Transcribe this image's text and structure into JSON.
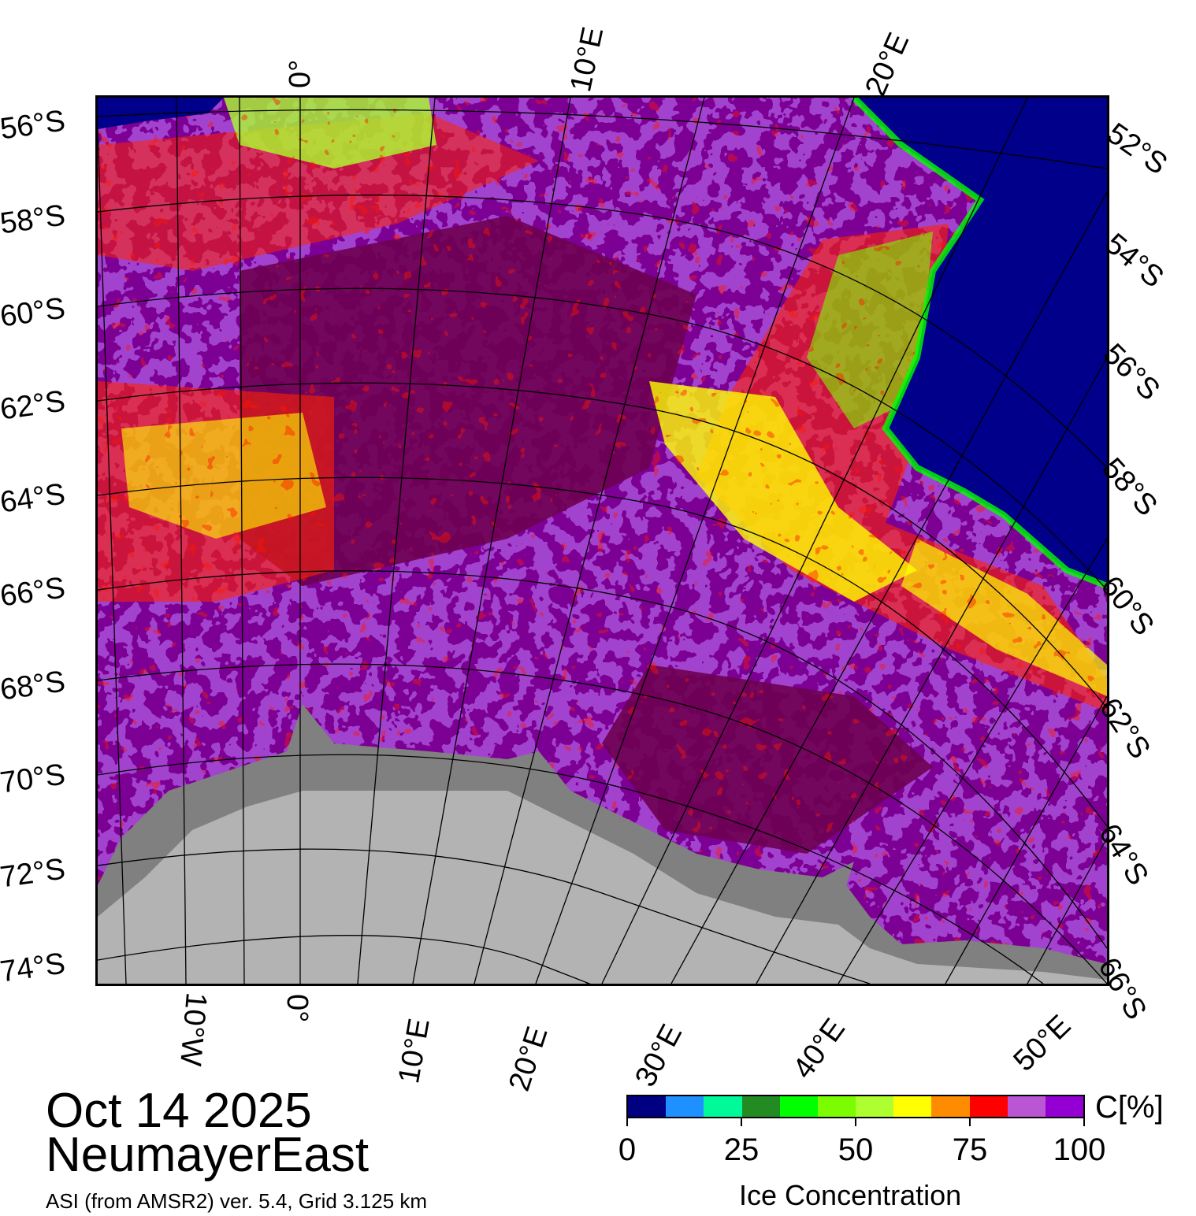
{
  "title": {
    "date": "Oct 14 2025",
    "region": "NeumayerEast",
    "subtitle": "ASI (from AMSR2) ver. 5.4,  Grid 3.125 km"
  },
  "map": {
    "left_axis_labels": [
      "56°S",
      "58°S",
      "60°S",
      "62°S",
      "64°S",
      "66°S",
      "68°S",
      "70°S",
      "72°S",
      "74°S"
    ],
    "right_axis_labels": [
      "52°S",
      "54°S",
      "56°S",
      "58°S",
      "60°S",
      "62°S",
      "64°S",
      "66°S"
    ],
    "top_axis_labels": [
      "0°",
      "10°E",
      "20°E"
    ],
    "bottom_axis_labels": [
      "10°W",
      "0°",
      "10°E",
      "20°E",
      "30°E",
      "40°E",
      "50°E"
    ],
    "colors": {
      "open_ocean": "#00008b",
      "land": "#b3b3b3",
      "ice_shelf": "#808080",
      "high_concentration": "#6e0050"
    }
  },
  "colorbar": {
    "title": "Ice Concentration",
    "unit": "C[%]",
    "tick_labels": [
      "0",
      "25",
      "50",
      "75",
      "100"
    ],
    "colors": [
      "#000080",
      "#1e90ff",
      "#00fa9a",
      "#228b22",
      "#00ff00",
      "#7cfc00",
      "#adff2f",
      "#ffff00",
      "#ff8c00",
      "#ff0000",
      "#ba55d3",
      "#9400d3"
    ]
  }
}
